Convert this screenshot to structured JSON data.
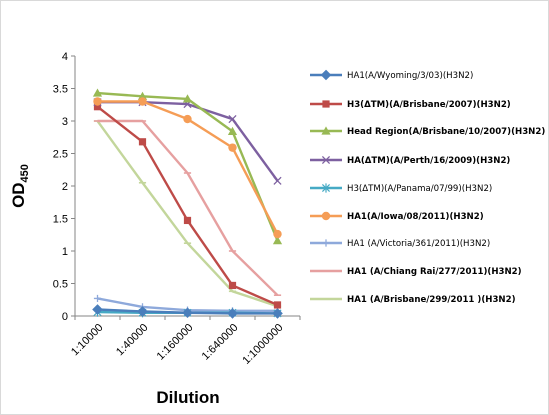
{
  "chart_data": {
    "type": "line",
    "xlabel": "Dilution",
    "ylabel": "OD",
    "ylabel_sub": "450",
    "ylim": [
      0,
      4
    ],
    "yticks": [
      "0",
      "0.5",
      "1",
      "1.5",
      "2",
      "2.5",
      "3",
      "3.5",
      "4"
    ],
    "categories": [
      "1:10000",
      "1:40000",
      "1:160000",
      "1:640000",
      "1:1000000"
    ],
    "grid": false,
    "legend_position": "right",
    "series": [
      {
        "name": "HA1(A/Wyoming/3/03)(H3N2)",
        "color": "#4a7ebb",
        "marker": "diamond",
        "bold": false,
        "values": [
          0.1,
          0.07,
          0.05,
          0.04,
          0.04
        ]
      },
      {
        "name": "H3(ΔTM)(A/Brisbane/2007)(H3N2)",
        "color": "#be4b48",
        "marker": "square",
        "bold": true,
        "values": [
          3.22,
          2.68,
          1.47,
          0.47,
          0.17
        ]
      },
      {
        "name": "Head Region(A/Brisbane/10/2007)(H3N2)",
        "color": "#98b954",
        "marker": "triangle",
        "bold": true,
        "values": [
          3.43,
          3.38,
          3.34,
          2.84,
          1.16
        ]
      },
      {
        "name": "HA(ΔTM)(A/Perth/16/2009)(H3N2)",
        "color": "#7d60a0",
        "marker": "x",
        "bold": true,
        "values": [
          3.29,
          3.29,
          3.26,
          3.03,
          2.08
        ]
      },
      {
        "name": "H3(ΔTM)(A/Panama/07/99)(H3N2)",
        "color": "#46aac5",
        "marker": "star",
        "bold": false,
        "values": [
          0.06,
          0.05,
          0.05,
          0.05,
          0.04
        ]
      },
      {
        "name": "HA1(A/Iowa/08/2011)(H3N2)",
        "color": "#f59d56",
        "marker": "circle",
        "bold": true,
        "values": [
          3.3,
          3.3,
          3.03,
          2.59,
          1.26
        ]
      },
      {
        "name": "HA1 (A/Victoria/361/2011)(H3N2)",
        "color": "#8ea9db",
        "marker": "plus",
        "bold": false,
        "values": [
          0.27,
          0.14,
          0.09,
          0.08,
          0.08
        ]
      },
      {
        "name": "HA1 (A/Chiang Rai/277/2011)(H3N2)",
        "color": "#e6a0a0",
        "marker": "dash",
        "bold": true,
        "values": [
          3.0,
          3.0,
          2.2,
          1.0,
          0.32
        ]
      },
      {
        "name": "HA1 (A/Brisbane/299/2011 )(H3N2)",
        "color": "#c3d69b",
        "marker": "dash",
        "bold": true,
        "values": [
          3.0,
          2.05,
          1.12,
          0.38,
          0.15
        ]
      }
    ]
  }
}
